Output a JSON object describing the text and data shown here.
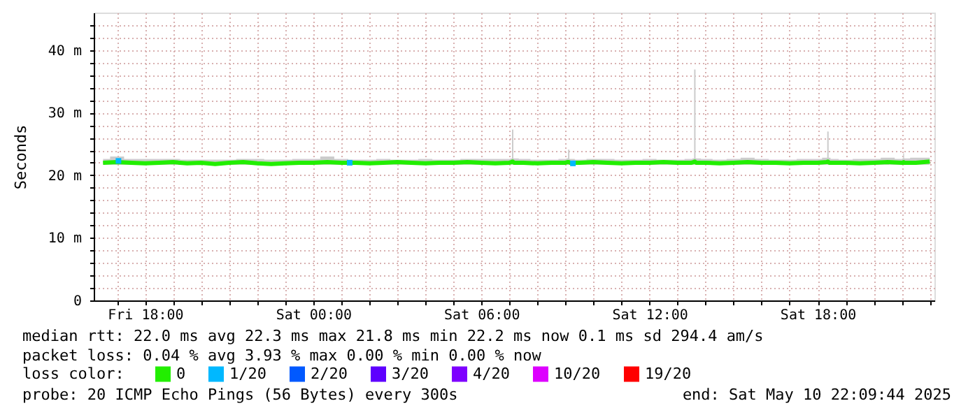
{
  "chart_data": {
    "type": "line",
    "ylabel": "Seconds",
    "legend_title": "loss color:",
    "legend": "bottom",
    "grid": true,
    "xlim": [
      "2025-05-09T16:10",
      "2025-05-10T22:10"
    ],
    "xticks": [
      {
        "value": "2025-05-09T17:00",
        "label": null
      },
      {
        "value": "2025-05-09T18:00",
        "label": "Fri 18:00"
      },
      {
        "value": "2025-05-09T19:00",
        "label": null
      },
      {
        "value": "2025-05-09T20:00",
        "label": null
      },
      {
        "value": "2025-05-09T21:00",
        "label": null
      },
      {
        "value": "2025-05-09T22:00",
        "label": null
      },
      {
        "value": "2025-05-09T23:00",
        "label": null
      },
      {
        "value": "2025-05-10T00:00",
        "label": "Sat 00:00"
      },
      {
        "value": "2025-05-10T01:00",
        "label": null
      },
      {
        "value": "2025-05-10T02:00",
        "label": null
      },
      {
        "value": "2025-05-10T03:00",
        "label": null
      },
      {
        "value": "2025-05-10T04:00",
        "label": null
      },
      {
        "value": "2025-05-10T05:00",
        "label": null
      },
      {
        "value": "2025-05-10T06:00",
        "label": "Sat 06:00"
      },
      {
        "value": "2025-05-10T07:00",
        "label": null
      },
      {
        "value": "2025-05-10T08:00",
        "label": null
      },
      {
        "value": "2025-05-10T09:00",
        "label": null
      },
      {
        "value": "2025-05-10T10:00",
        "label": null
      },
      {
        "value": "2025-05-10T11:00",
        "label": null
      },
      {
        "value": "2025-05-10T12:00",
        "label": "Sat 12:00"
      },
      {
        "value": "2025-05-10T13:00",
        "label": null
      },
      {
        "value": "2025-05-10T14:00",
        "label": null
      },
      {
        "value": "2025-05-10T15:00",
        "label": null
      },
      {
        "value": "2025-05-10T16:00",
        "label": null
      },
      {
        "value": "2025-05-10T17:00",
        "label": null
      },
      {
        "value": "2025-05-10T18:00",
        "label": "Sat 18:00"
      },
      {
        "value": "2025-05-10T19:00",
        "label": null
      },
      {
        "value": "2025-05-10T20:00",
        "label": null
      },
      {
        "value": "2025-05-10T21:00",
        "label": null
      },
      {
        "value": "2025-05-10T22:00",
        "label": null
      }
    ],
    "ylim": [
      0,
      46
    ],
    "yticks": [
      {
        "value": 0,
        "label": "0"
      },
      {
        "value": 2,
        "label": null
      },
      {
        "value": 4,
        "label": null
      },
      {
        "value": 6,
        "label": null
      },
      {
        "value": 8,
        "label": null
      },
      {
        "value": 10,
        "label": "10 m"
      },
      {
        "value": 12,
        "label": null
      },
      {
        "value": 14,
        "label": null
      },
      {
        "value": 16,
        "label": null
      },
      {
        "value": 18,
        "label": null
      },
      {
        "value": 20,
        "label": "20 m"
      },
      {
        "value": 22,
        "label": null
      },
      {
        "value": 24,
        "label": null
      },
      {
        "value": 26,
        "label": null
      },
      {
        "value": 28,
        "label": null
      },
      {
        "value": 30,
        "label": "30 m"
      },
      {
        "value": 32,
        "label": null
      },
      {
        "value": 34,
        "label": null
      },
      {
        "value": 36,
        "label": null
      },
      {
        "value": 38,
        "label": null
      },
      {
        "value": 40,
        "label": "40 m"
      },
      {
        "value": 42,
        "label": null
      },
      {
        "value": 44,
        "label": null
      }
    ],
    "annotations": [
      "median rtt:  22.0 ms avg  22.3 ms max  21.8 ms min  22.2 ms now  0.1 ms sd  294.4   am/s",
      "packet loss: 0.04 % avg  3.93 % max  0.00 % min  0.00 % now",
      "probe:       20 ICMP Echo Pings (56 Bytes) every 300s",
      "end: Sat May 10 22:09:44 2025"
    ],
    "series": [
      {
        "name": "0",
        "color": "#22ee00",
        "x": [
          "2025-05-09T16:30",
          "2025-05-09T17:00",
          "2025-05-09T17:30",
          "2025-05-09T18:00",
          "2025-05-09T18:30",
          "2025-05-09T19:00",
          "2025-05-09T19:30",
          "2025-05-09T20:00",
          "2025-05-09T20:30",
          "2025-05-09T21:00",
          "2025-05-09T21:30",
          "2025-05-09T22:00",
          "2025-05-09T22:30",
          "2025-05-09T23:00",
          "2025-05-09T23:30",
          "2025-05-10T00:00",
          "2025-05-10T00:30",
          "2025-05-10T01:00",
          "2025-05-10T01:30",
          "2025-05-10T02:00",
          "2025-05-10T02:30",
          "2025-05-10T03:00",
          "2025-05-10T03:30",
          "2025-05-10T04:00",
          "2025-05-10T04:30",
          "2025-05-10T05:00",
          "2025-05-10T05:30",
          "2025-05-10T06:00",
          "2025-05-10T06:30",
          "2025-05-10T07:00",
          "2025-05-10T07:04",
          "2025-05-10T07:07",
          "2025-05-10T07:10",
          "2025-05-10T07:30",
          "2025-05-10T08:00",
          "2025-05-10T08:30",
          "2025-05-10T09:00",
          "2025-05-10T09:04",
          "2025-05-10T09:07",
          "2025-05-10T09:10",
          "2025-05-10T09:30",
          "2025-05-10T10:00",
          "2025-05-10T10:30",
          "2025-05-10T11:00",
          "2025-05-10T11:30",
          "2025-05-10T12:00",
          "2025-05-10T12:30",
          "2025-05-10T13:00",
          "2025-05-10T13:30",
          "2025-05-10T13:34",
          "2025-05-10T13:37",
          "2025-05-10T13:40",
          "2025-05-10T14:00",
          "2025-05-10T14:30",
          "2025-05-10T15:00",
          "2025-05-10T15:30",
          "2025-05-10T16:00",
          "2025-05-10T16:30",
          "2025-05-10T17:00",
          "2025-05-10T17:30",
          "2025-05-10T18:00",
          "2025-05-10T18:19",
          "2025-05-10T18:22",
          "2025-05-10T18:25",
          "2025-05-10T18:30",
          "2025-05-10T19:00",
          "2025-05-10T19:30",
          "2025-05-10T20:00",
          "2025-05-10T20:30",
          "2025-05-10T21:00",
          "2025-05-10T21:02",
          "2025-05-10T21:04",
          "2025-05-10T21:06",
          "2025-05-10T21:30",
          "2025-05-10T22:00"
        ],
        "values": [
          22.0,
          22.1,
          22.0,
          21.9,
          22.0,
          22.1,
          21.9,
          22.0,
          21.8,
          22.0,
          22.1,
          21.9,
          21.8,
          21.9,
          22.0,
          22.0,
          22.1,
          22.0,
          22.0,
          21.9,
          22.0,
          22.1,
          22.0,
          21.9,
          22.0,
          22.0,
          22.1,
          22.0,
          21.9,
          22.0,
          22.1,
          22.2,
          22.0,
          22.0,
          21.9,
          22.0,
          22.0,
          22.1,
          22.1,
          22.0,
          22.0,
          22.1,
          22.0,
          21.9,
          22.0,
          22.0,
          22.1,
          22.0,
          22.0,
          22.1,
          22.2,
          22.0,
          22.0,
          21.9,
          22.0,
          22.1,
          22.0,
          22.0,
          21.9,
          22.0,
          22.0,
          22.1,
          22.2,
          22.0,
          22.0,
          22.0,
          21.9,
          22.0,
          22.1,
          22.0,
          22.0,
          22.1,
          22.0,
          22.0,
          22.2
        ],
        "lower": [
          21.7,
          21.7,
          21.7,
          21.7,
          21.7,
          21.7,
          21.7,
          21.7,
          21.6,
          21.7,
          21.7,
          21.7,
          21.6,
          21.7,
          21.7,
          21.7,
          21.7,
          21.7,
          21.7,
          21.7,
          21.7,
          21.7,
          21.7,
          21.7,
          21.7,
          21.7,
          21.7,
          21.7,
          21.7,
          21.7,
          21.7,
          21.7,
          21.7,
          21.7,
          21.7,
          21.7,
          21.7,
          21.7,
          21.7,
          21.7,
          21.7,
          21.7,
          21.7,
          21.7,
          21.7,
          21.7,
          21.7,
          21.7,
          21.7,
          21.7,
          21.7,
          21.7,
          21.7,
          21.7,
          21.7,
          21.7,
          21.7,
          21.7,
          21.7,
          21.7,
          21.7,
          21.7,
          21.7,
          21.7,
          21.7,
          21.7,
          21.7,
          21.7,
          21.7,
          21.7,
          21.7,
          21.7,
          21.7,
          21.7,
          21.7
        ],
        "upper": [
          22.6,
          23.0,
          22.6,
          22.6,
          22.6,
          22.6,
          22.5,
          22.5,
          22.5,
          22.5,
          22.6,
          22.6,
          22.5,
          22.5,
          22.6,
          22.6,
          23.0,
          22.6,
          22.5,
          22.5,
          22.6,
          22.5,
          22.5,
          22.6,
          22.5,
          22.5,
          22.6,
          22.6,
          22.6,
          22.6,
          22.7,
          27.3,
          22.7,
          22.6,
          22.5,
          22.5,
          22.6,
          22.7,
          24.1,
          22.6,
          22.5,
          22.6,
          22.6,
          22.5,
          22.5,
          22.6,
          22.5,
          22.5,
          22.6,
          22.7,
          36.9,
          22.7,
          22.6,
          22.5,
          22.6,
          22.8,
          22.6,
          22.5,
          22.5,
          22.6,
          22.6,
          22.8,
          27.0,
          22.8,
          22.6,
          22.5,
          22.6,
          22.6,
          22.8,
          22.6,
          22.7,
          23.5,
          22.7,
          22.8,
          22.8
        ]
      },
      {
        "name": "1/20",
        "color": "#00b8ff",
        "type": "scatter",
        "x": [
          "2025-05-09T17:03",
          "2025-05-10T01:18",
          "2025-05-10T09:16"
        ],
        "values": [
          22.3,
          22.0,
          21.9
        ]
      },
      {
        "name": "2/20",
        "color": "#0059ff",
        "type": "scatter"
      },
      {
        "name": "3/20",
        "color": "#5e00ff",
        "type": "scatter"
      },
      {
        "name": "4/20",
        "color": "#7e00ff",
        "type": "scatter"
      },
      {
        "name": "10/20",
        "color": "#dd00ff",
        "type": "scatter"
      },
      {
        "name": "19/20",
        "color": "#ff0000",
        "type": "scatter"
      }
    ]
  }
}
